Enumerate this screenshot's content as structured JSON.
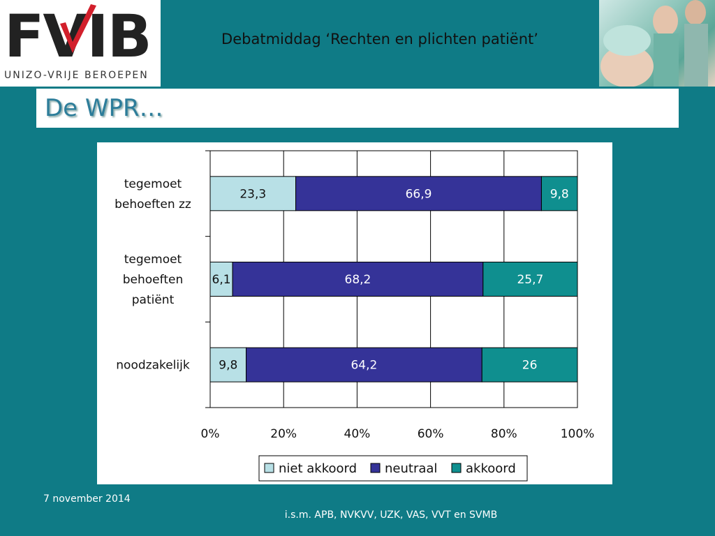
{
  "header": {
    "logo_text": "FVIB",
    "logo_subtitle": "UNIZO-VRIJE BEROEPEN",
    "title": "Debatmiddag ‘Rechten en plichten patiënt’"
  },
  "slide": {
    "title": "De WPR…"
  },
  "footer": {
    "date": "7 november 2014",
    "partners": "i.s.m. APB, NVKVV, UZK, VAS, VVT en SVMB"
  },
  "colors": {
    "niet_akkoord": "#b8e0e6",
    "neutraal": "#353398",
    "akkoord": "#0f8f8f",
    "background": "#0f7b86"
  },
  "chart_data": {
    "type": "bar",
    "orientation": "horizontal",
    "stacked": true,
    "percent_stacked": true,
    "categories": [
      [
        "tegemoet",
        "behoeften zz"
      ],
      [
        "tegemoet",
        "behoeften",
        "patiënt"
      ],
      [
        "noodzakelijk"
      ]
    ],
    "series": [
      {
        "name": "niet akkoord",
        "values": [
          23.3,
          6.1,
          9.8
        ],
        "labels": [
          "23,3",
          "6,1",
          "9,8"
        ],
        "color": "#b8e0e6",
        "label_color": "#111111"
      },
      {
        "name": "neutraal",
        "values": [
          66.9,
          68.2,
          64.2
        ],
        "labels": [
          "66,9",
          "68,2",
          "64,2"
        ],
        "color": "#353398",
        "label_color": "#ffffff"
      },
      {
        "name": "akkoord",
        "values": [
          9.8,
          25.7,
          26
        ],
        "labels": [
          "9,8",
          "25,7",
          "26"
        ],
        "color": "#0f8f8f",
        "label_color": "#ffffff"
      }
    ],
    "xlim": [
      0,
      100
    ],
    "xticks": [
      0,
      20,
      40,
      60,
      80,
      100
    ],
    "xtick_labels": [
      "0%",
      "20%",
      "40%",
      "60%",
      "80%",
      "100%"
    ],
    "grid": true,
    "legend_position": "bottom"
  }
}
